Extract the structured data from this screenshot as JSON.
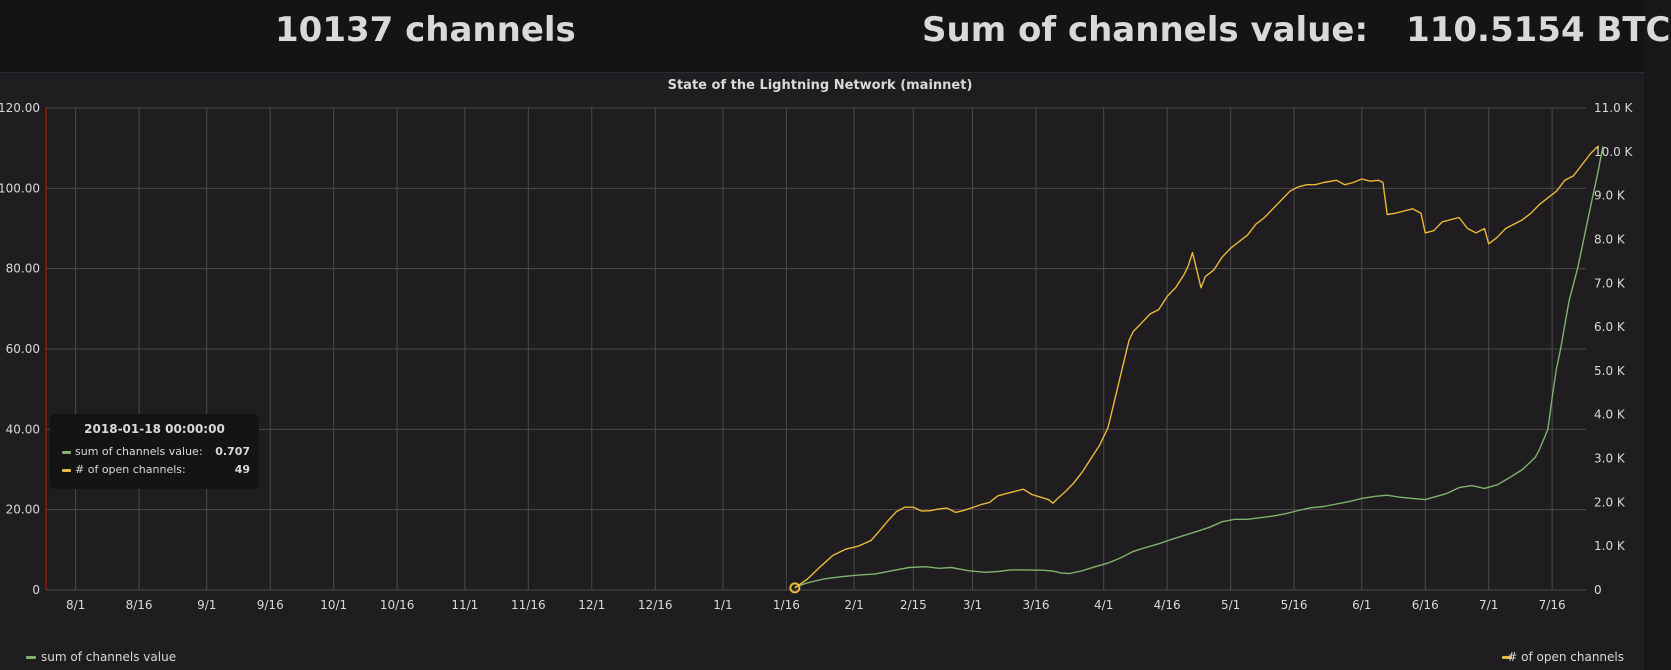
{
  "header": {
    "channel_count_text": "10137 channels",
    "sum_label": "Sum of channels value:",
    "sum_value": "110.5154 BTC"
  },
  "colors": {
    "value_series": "#7eb26d",
    "channels_series": "#eab839",
    "grid": "#4a4a4a",
    "text": "#d8d9da",
    "left_axis_line": "#bf1b00"
  },
  "tooltip": {
    "time": "2018-01-18 00:00:00",
    "rows": [
      {
        "label": "sum of channels value:",
        "value": "0.707"
      },
      {
        "label": "# of open channels:",
        "value": "49"
      }
    ]
  },
  "legend": {
    "left": "sum of channels value",
    "right": "# of open channels"
  },
  "chart_data": {
    "type": "line",
    "title": "State of the Lightning Network (mainnet)",
    "x_start": "2017-07-25",
    "x_end": "2018-07-24",
    "xlim_days": [
      0,
      364
    ],
    "x_ticks": [
      {
        "label": "8/1",
        "day": 7
      },
      {
        "label": "8/16",
        "day": 22
      },
      {
        "label": "9/1",
        "day": 38
      },
      {
        "label": "9/16",
        "day": 53
      },
      {
        "label": "10/1",
        "day": 68
      },
      {
        "label": "10/16",
        "day": 83
      },
      {
        "label": "11/1",
        "day": 99
      },
      {
        "label": "11/16",
        "day": 114
      },
      {
        "label": "12/1",
        "day": 129
      },
      {
        "label": "12/16",
        "day": 144
      },
      {
        "label": "1/1",
        "day": 160
      },
      {
        "label": "1/16",
        "day": 175
      },
      {
        "label": "2/1",
        "day": 191
      },
      {
        "label": "2/15",
        "day": 205
      },
      {
        "label": "3/1",
        "day": 219
      },
      {
        "label": "3/16",
        "day": 234
      },
      {
        "label": "4/1",
        "day": 250
      },
      {
        "label": "4/16",
        "day": 265
      },
      {
        "label": "5/1",
        "day": 280
      },
      {
        "label": "5/16",
        "day": 295
      },
      {
        "label": "6/1",
        "day": 311
      },
      {
        "label": "6/16",
        "day": 326
      },
      {
        "label": "7/1",
        "day": 341
      },
      {
        "label": "7/16",
        "day": 356
      }
    ],
    "y_left": {
      "ylim": [
        0,
        120
      ],
      "ticks": [
        "0",
        "20.00",
        "40.00",
        "60.00",
        "80.00",
        "100.00",
        "120.00"
      ],
      "tick_values": [
        0,
        20,
        40,
        60,
        80,
        100,
        120
      ]
    },
    "y_right": {
      "ylim": [
        0,
        11000
      ],
      "ticks": [
        "0",
        "1.0 K",
        "2.0 K",
        "3.0 K",
        "4.0 K",
        "5.0 K",
        "6.0 K",
        "7.0 K",
        "8.0 K",
        "9.0 K",
        "10.0 K",
        "11.0 K"
      ],
      "tick_values": [
        0,
        1000,
        2000,
        3000,
        4000,
        5000,
        6000,
        7000,
        8000,
        9000,
        10000,
        11000
      ]
    },
    "series": [
      {
        "name": "sum of channels value",
        "axis": "left",
        "points": [
          [
            177,
            0.7
          ],
          [
            180,
            1.8
          ],
          [
            184,
            2.8
          ],
          [
            188,
            3.3
          ],
          [
            192,
            3.7
          ],
          [
            196,
            4.0
          ],
          [
            200,
            4.8
          ],
          [
            204,
            5.6
          ],
          [
            208,
            5.8
          ],
          [
            211,
            5.4
          ],
          [
            214,
            5.6
          ],
          [
            218,
            4.8
          ],
          [
            222,
            4.4
          ],
          [
            225,
            4.6
          ],
          [
            228,
            5.0
          ],
          [
            232,
            5.0
          ],
          [
            236,
            4.9
          ],
          [
            238,
            4.7
          ],
          [
            240,
            4.2
          ],
          [
            242,
            4.1
          ],
          [
            245,
            4.8
          ],
          [
            248,
            5.8
          ],
          [
            251,
            6.7
          ],
          [
            254,
            8.0
          ],
          [
            257,
            9.6
          ],
          [
            260,
            10.6
          ],
          [
            263,
            11.5
          ],
          [
            266,
            12.6
          ],
          [
            269,
            13.6
          ],
          [
            272,
            14.6
          ],
          [
            275,
            15.6
          ],
          [
            278,
            17.0
          ],
          [
            281,
            17.6
          ],
          [
            284,
            17.6
          ],
          [
            287,
            18.0
          ],
          [
            290,
            18.4
          ],
          [
            293,
            19.0
          ],
          [
            296,
            19.8
          ],
          [
            299,
            20.5
          ],
          [
            302,
            20.8
          ],
          [
            305,
            21.4
          ],
          [
            308,
            22.0
          ],
          [
            311,
            22.8
          ],
          [
            314,
            23.3
          ],
          [
            317,
            23.6
          ],
          [
            320,
            23.1
          ],
          [
            323,
            22.8
          ],
          [
            326,
            22.5
          ],
          [
            328,
            23.1
          ],
          [
            331,
            24.0
          ],
          [
            334,
            25.5
          ],
          [
            337,
            26.0
          ],
          [
            340,
            25.3
          ],
          [
            343,
            26.2
          ],
          [
            346,
            28.0
          ],
          [
            349,
            30.0
          ],
          [
            352,
            33.0
          ],
          [
            353,
            35.0
          ],
          [
            355,
            40.0
          ],
          [
            356,
            48.0
          ],
          [
            357,
            55.0
          ],
          [
            358,
            60.0
          ],
          [
            359,
            66.0
          ],
          [
            360,
            72.0
          ],
          [
            361,
            76.0
          ],
          [
            362,
            80.0
          ],
          [
            363,
            85.0
          ],
          [
            364,
            90.0
          ],
          [
            365,
            95.0
          ],
          [
            366,
            100.0
          ],
          [
            367,
            105.0
          ],
          [
            368,
            110.5
          ]
        ]
      },
      {
        "name": "# of open channels",
        "axis": "right",
        "points": [
          [
            177,
            49
          ],
          [
            180,
            250
          ],
          [
            183,
            530
          ],
          [
            186,
            790
          ],
          [
            189,
            930
          ],
          [
            192,
            1000
          ],
          [
            195,
            1130
          ],
          [
            197,
            1350
          ],
          [
            199,
            1580
          ],
          [
            201,
            1790
          ],
          [
            203,
            1890
          ],
          [
            205,
            1890
          ],
          [
            207,
            1800
          ],
          [
            209,
            1810
          ],
          [
            211,
            1850
          ],
          [
            213,
            1870
          ],
          [
            215,
            1770
          ],
          [
            217,
            1820
          ],
          [
            219,
            1880
          ],
          [
            221,
            1950
          ],
          [
            223,
            2000
          ],
          [
            225,
            2150
          ],
          [
            227,
            2200
          ],
          [
            229,
            2250
          ],
          [
            231,
            2300
          ],
          [
            233,
            2180
          ],
          [
            235,
            2120
          ],
          [
            237,
            2060
          ],
          [
            238,
            1980
          ],
          [
            239,
            2080
          ],
          [
            241,
            2250
          ],
          [
            243,
            2450
          ],
          [
            245,
            2700
          ],
          [
            247,
            3000
          ],
          [
            249,
            3300
          ],
          [
            251,
            3700
          ],
          [
            252,
            4100
          ],
          [
            253,
            4500
          ],
          [
            254,
            4900
          ],
          [
            255,
            5300
          ],
          [
            256,
            5700
          ],
          [
            257,
            5900
          ],
          [
            259,
            6100
          ],
          [
            261,
            6300
          ],
          [
            263,
            6400
          ],
          [
            265,
            6700
          ],
          [
            267,
            6900
          ],
          [
            269,
            7200
          ],
          [
            270,
            7400
          ],
          [
            271,
            7700
          ],
          [
            272,
            7300
          ],
          [
            273,
            6900
          ],
          [
            274,
            7150
          ],
          [
            276,
            7300
          ],
          [
            278,
            7600
          ],
          [
            280,
            7800
          ],
          [
            282,
            7950
          ],
          [
            284,
            8100
          ],
          [
            286,
            8350
          ],
          [
            288,
            8500
          ],
          [
            290,
            8700
          ],
          [
            292,
            8900
          ],
          [
            294,
            9100
          ],
          [
            296,
            9200
          ],
          [
            298,
            9250
          ],
          [
            300,
            9250
          ],
          [
            302,
            9300
          ],
          [
            305,
            9350
          ],
          [
            307,
            9250
          ],
          [
            309,
            9300
          ],
          [
            311,
            9380
          ],
          [
            313,
            9330
          ],
          [
            315,
            9350
          ],
          [
            316,
            9300
          ],
          [
            317,
            8570
          ],
          [
            319,
            8600
          ],
          [
            321,
            8650
          ],
          [
            323,
            8700
          ],
          [
            325,
            8600
          ],
          [
            326,
            8150
          ],
          [
            328,
            8200
          ],
          [
            330,
            8400
          ],
          [
            332,
            8450
          ],
          [
            334,
            8500
          ],
          [
            336,
            8250
          ],
          [
            338,
            8150
          ],
          [
            340,
            8250
          ],
          [
            341,
            7900
          ],
          [
            343,
            8050
          ],
          [
            345,
            8250
          ],
          [
            347,
            8350
          ],
          [
            349,
            8450
          ],
          [
            351,
            8600
          ],
          [
            353,
            8800
          ],
          [
            355,
            8950
          ],
          [
            357,
            9100
          ],
          [
            359,
            9350
          ],
          [
            361,
            9450
          ],
          [
            363,
            9700
          ],
          [
            365,
            9950
          ],
          [
            366,
            10050
          ],
          [
            367,
            10137
          ]
        ]
      }
    ],
    "hover_point": {
      "day": 177,
      "series": "# of open channels",
      "value": 49
    }
  }
}
